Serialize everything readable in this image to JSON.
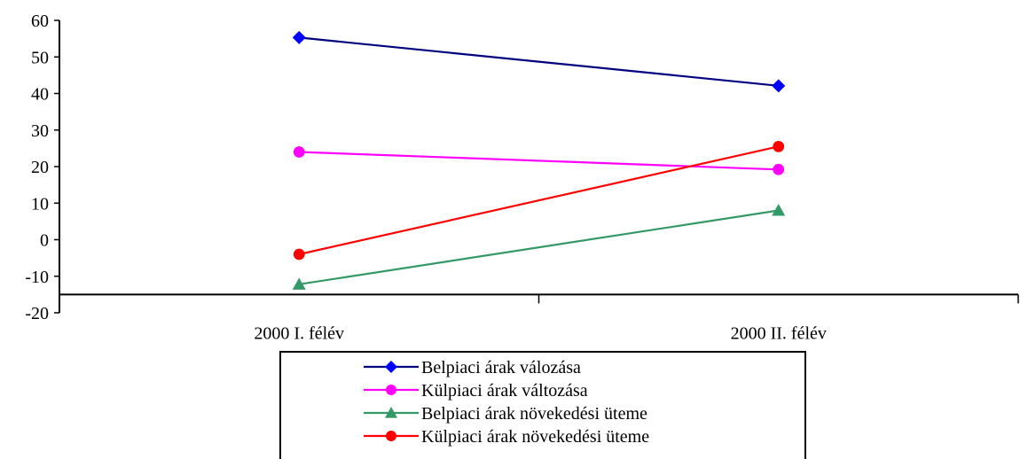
{
  "chart_data": {
    "type": "line",
    "categories": [
      "2000 I. félév",
      "2000 II. félév"
    ],
    "series": [
      {
        "name": "Belpiaci árak válozása",
        "values": [
          55.3,
          42.1
        ],
        "color": "#000080",
        "marker": "diamond",
        "marker_color": "#0000FF"
      },
      {
        "name": "Külpiaci árak változása",
        "values": [
          24.0,
          19.2
        ],
        "color": "#FF00FF",
        "marker": "circle",
        "marker_color": "#FF00FF"
      },
      {
        "name": "Belpiaci árak növekedési üteme",
        "values": [
          -12.2,
          8.0
        ],
        "color": "#339966",
        "marker": "triangle",
        "marker_color": "#339966"
      },
      {
        "name": "Külpiaci árak növekedési üteme",
        "values": [
          -4.0,
          25.5
        ],
        "color": "#FF0000",
        "marker": "circle",
        "marker_color": "#FF0000"
      }
    ],
    "ylim": [
      -20,
      60
    ],
    "yticks": [
      60,
      50,
      40,
      30,
      20,
      10,
      0,
      -10,
      -20
    ],
    "x_axis_crosses_at": -15,
    "grid": false,
    "legend_position": "bottom",
    "title": "",
    "xlabel": "",
    "ylabel": ""
  }
}
